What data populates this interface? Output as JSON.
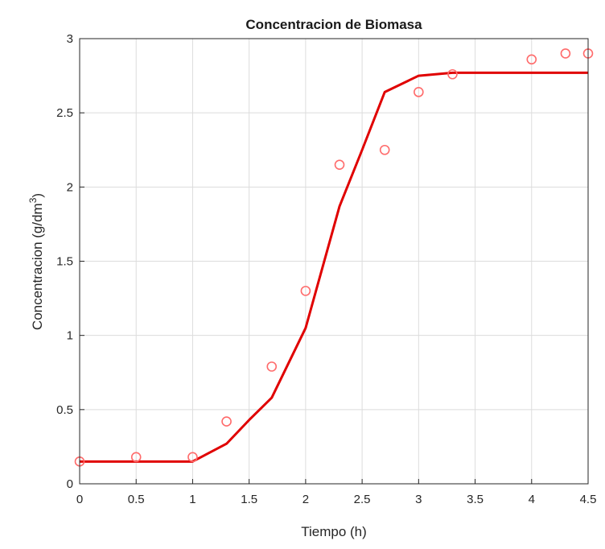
{
  "chart_data": {
    "type": "line",
    "title": "Concentracion de Biomasa",
    "xlabel": "Tiempo (h)",
    "ylabel_main": "Concentracion (g/dm",
    "ylabel_sup": "3",
    "ylabel_close": ")",
    "xlim": [
      0,
      4.5
    ],
    "ylim": [
      0,
      3
    ],
    "xticks": [
      "0",
      "0.5",
      "1",
      "1.5",
      "2",
      "2.5",
      "3",
      "3.5",
      "4",
      "4.5"
    ],
    "yticks": [
      "0",
      "0.5",
      "1",
      "1.5",
      "2",
      "2.5",
      "3"
    ],
    "grid": true,
    "series": [
      {
        "kind": "line",
        "color": "#e00000",
        "x": [
          0,
          0.5,
          1.0,
          1.3,
          1.5,
          1.7,
          2.0,
          2.3,
          2.5,
          2.7,
          3.0,
          3.3,
          4.0,
          4.5
        ],
        "y": [
          0.15,
          0.15,
          0.15,
          0.27,
          0.43,
          0.58,
          1.05,
          1.87,
          2.25,
          2.64,
          2.75,
          2.77,
          2.77,
          2.77
        ]
      },
      {
        "kind": "scatter",
        "color": "#ff6b6b",
        "x": [
          0,
          0.5,
          1.0,
          1.3,
          1.7,
          2.0,
          2.3,
          2.7,
          3.0,
          3.3,
          4.0,
          4.3,
          4.5
        ],
        "y": [
          0.15,
          0.18,
          0.18,
          0.42,
          0.79,
          1.3,
          2.15,
          2.25,
          2.64,
          2.76,
          2.86,
          2.9,
          2.9
        ]
      }
    ]
  }
}
